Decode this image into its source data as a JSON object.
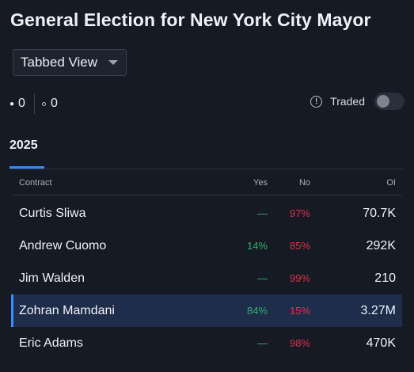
{
  "page": {
    "title": "General Election for New York City Mayor"
  },
  "view_select": {
    "value": "Tabbed View"
  },
  "counts": {
    "filled": "0",
    "outline": "0"
  },
  "traded": {
    "label": "Traded",
    "enabled": false
  },
  "tabs": [
    {
      "label": "2025",
      "active": true
    }
  ],
  "table": {
    "headers": {
      "contract": "Contract",
      "yes": "Yes",
      "no": "No",
      "oi": "OI"
    },
    "rows": [
      {
        "contract": "Curtis Sliwa",
        "yes": "—",
        "no": "97%",
        "oi": "70.7K",
        "selected": false
      },
      {
        "contract": "Andrew Cuomo",
        "yes": "14%",
        "no": "85%",
        "oi": "292K",
        "selected": false
      },
      {
        "contract": "Jim Walden",
        "yes": "—",
        "no": "99%",
        "oi": "210",
        "selected": false
      },
      {
        "contract": "Zohran Mamdani",
        "yes": "84%",
        "no": "15%",
        "oi": "3.27M",
        "selected": true
      },
      {
        "contract": "Eric Adams",
        "yes": "—",
        "no": "98%",
        "oi": "470K",
        "selected": false
      }
    ]
  },
  "colors": {
    "background": "#161a24",
    "accent": "#2f8bff",
    "yes": "#2fb36b",
    "no": "#e0304a",
    "selected_row": "#1e2d4a"
  },
  "icons": {
    "info": "info-circle-icon",
    "dropdown": "chevron-down-icon"
  }
}
